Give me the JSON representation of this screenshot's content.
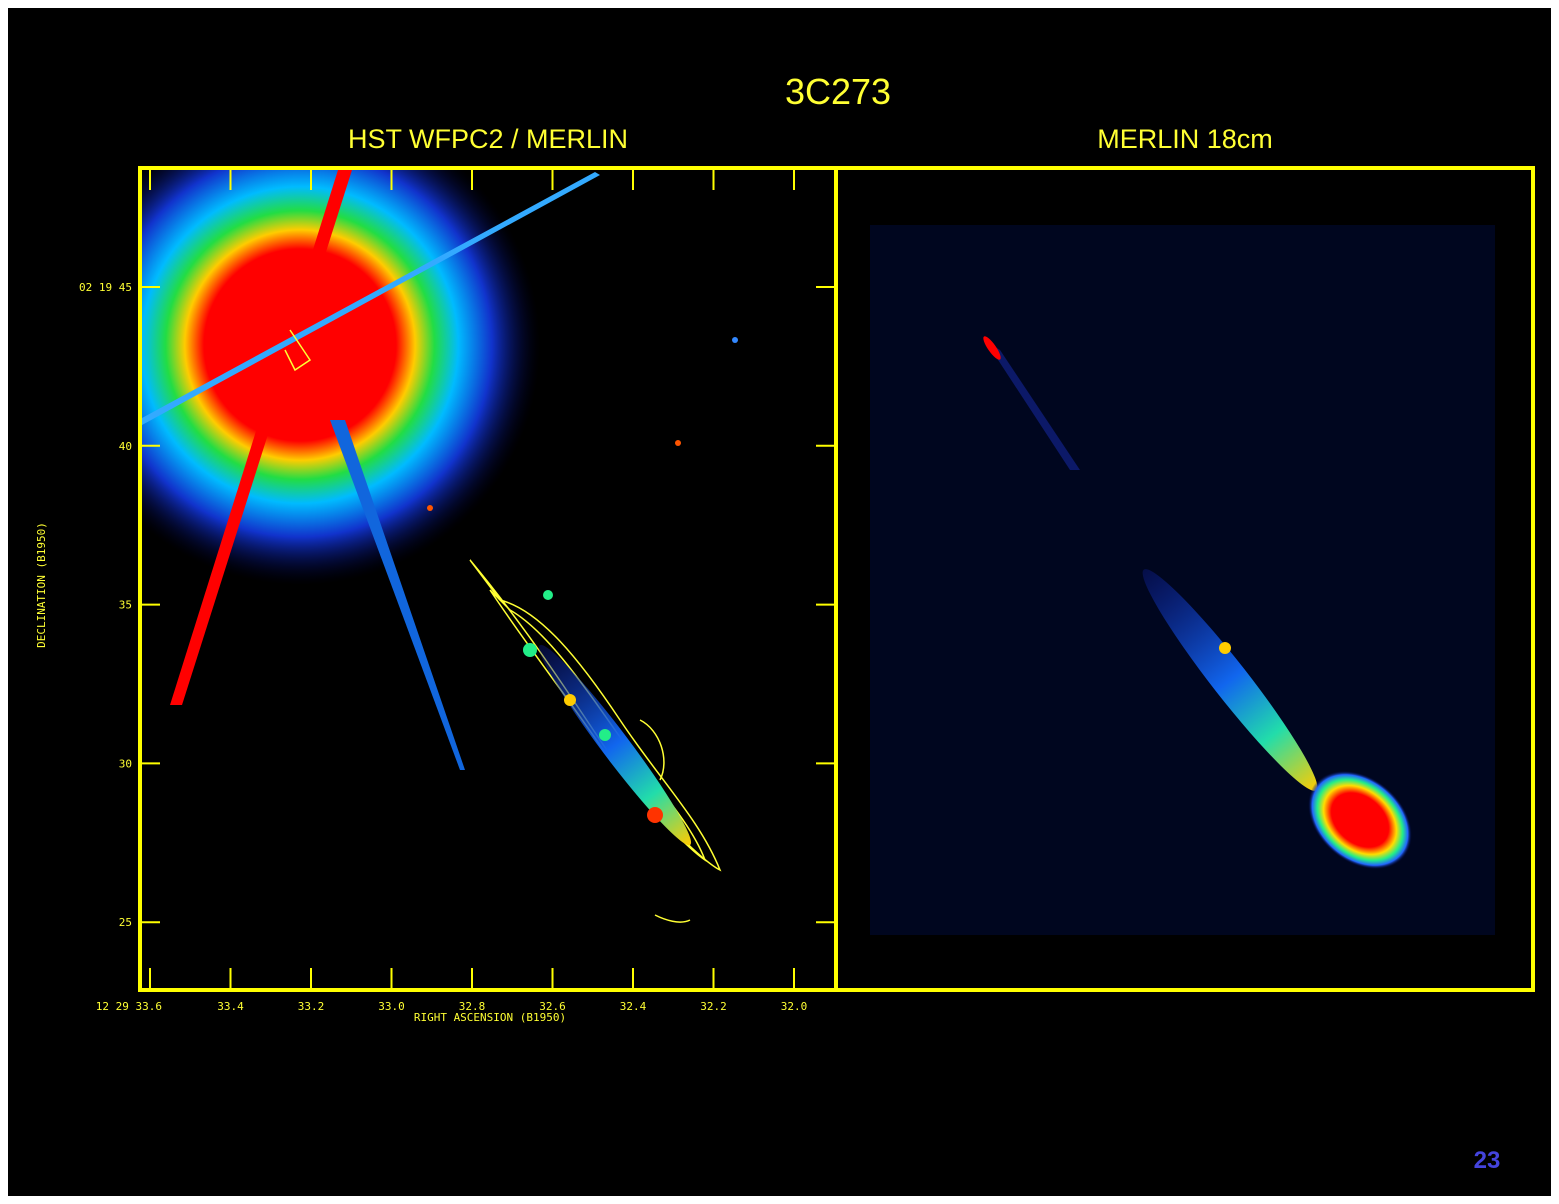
{
  "slide": {
    "title": "3C273",
    "page_number": "23"
  },
  "panels": [
    {
      "title": "HST WFPC2 / MERLIN",
      "x_axis": {
        "label": "RIGHT ASCENSION (B1950)",
        "ticks": [
          "12 29 33.6",
          "33.4",
          "33.2",
          "33.0",
          "32.8",
          "32.6",
          "32.4",
          "32.2",
          "32.0"
        ]
      },
      "y_axis": {
        "label": "DECLINATION (B1950)",
        "ticks": [
          "02 19 45",
          "40",
          "35",
          "30",
          "25"
        ]
      }
    },
    {
      "title": "MERLIN 18cm"
    }
  ]
}
